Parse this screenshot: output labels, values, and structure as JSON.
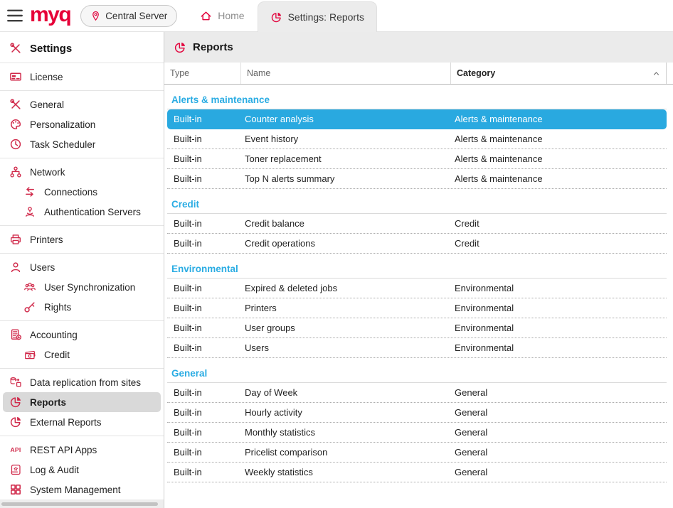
{
  "colors": {
    "brand_red": "#e60038",
    "icon_red": "#d0294a",
    "selected_row_blue": "#29a9e0",
    "category_header_blue": "#2aace3",
    "active_tab_bg": "#ececec",
    "sidebar_selected_bg": "#d9d9d9"
  },
  "topbar": {
    "menu_icon": "hamburger-icon",
    "logo_text": "myq",
    "server_button": {
      "icon": "location-pin-icon",
      "label": "Central Server"
    },
    "home_tab": {
      "icon": "home-icon",
      "label": "Home"
    },
    "active_tab": {
      "icon": "pie-chart-icon",
      "label": "Settings: Reports"
    }
  },
  "sidebar": {
    "groups": [
      {
        "items": [
          {
            "icon": "tools-icon",
            "label": "Settings",
            "style": "header"
          }
        ]
      },
      {
        "items": [
          {
            "icon": "license-icon",
            "label": "License"
          }
        ]
      },
      {
        "items": [
          {
            "icon": "tools-icon",
            "label": "General"
          },
          {
            "icon": "palette-icon",
            "label": "Personalization"
          },
          {
            "icon": "clock-icon",
            "label": "Task Scheduler"
          }
        ]
      },
      {
        "items": [
          {
            "icon": "network-icon",
            "label": "Network"
          },
          {
            "icon": "sync-arrows-icon",
            "label": "Connections",
            "indent": true
          },
          {
            "icon": "auth-server-icon",
            "label": "Authentication Servers",
            "indent": true
          }
        ]
      },
      {
        "items": [
          {
            "icon": "printer-icon",
            "label": "Printers"
          }
        ]
      },
      {
        "items": [
          {
            "icon": "user-icon",
            "label": "Users"
          },
          {
            "icon": "user-group-icon",
            "label": "User Synchronization",
            "indent": true
          },
          {
            "icon": "key-icon",
            "label": "Rights",
            "indent": true
          }
        ]
      },
      {
        "items": [
          {
            "icon": "calculator-icon",
            "label": "Accounting"
          },
          {
            "icon": "banknote-icon",
            "label": "Credit",
            "indent": true
          }
        ]
      },
      {
        "items": [
          {
            "icon": "database-sync-icon",
            "label": "Data replication from sites"
          },
          {
            "icon": "pie-chart-icon",
            "label": "Reports",
            "selected": true
          },
          {
            "icon": "pie-chart-icon",
            "label": "External Reports"
          }
        ]
      },
      {
        "items": [
          {
            "icon": "api-icon",
            "label": "REST API Apps"
          },
          {
            "icon": "scroll-icon",
            "label": "Log & Audit"
          },
          {
            "icon": "grid-icon",
            "label": "System Management"
          }
        ]
      }
    ]
  },
  "main": {
    "header": {
      "icon": "pie-chart-icon",
      "title": "Reports"
    },
    "table": {
      "columns": [
        {
          "label": "Type"
        },
        {
          "label": "Name"
        },
        {
          "label": "Category",
          "sorted": true,
          "sort_icon": "caret-up-icon"
        }
      ],
      "groups": [
        {
          "label": "Alerts & maintenance",
          "rows": [
            {
              "type": "Built-in",
              "name": "Counter analysis",
              "category": "Alerts & maintenance",
              "selected": true
            },
            {
              "type": "Built-in",
              "name": "Event history",
              "category": "Alerts & maintenance"
            },
            {
              "type": "Built-in",
              "name": "Toner replacement",
              "category": "Alerts & maintenance"
            },
            {
              "type": "Built-in",
              "name": "Top N alerts summary",
              "category": "Alerts & maintenance"
            }
          ]
        },
        {
          "label": "Credit",
          "rows": [
            {
              "type": "Built-in",
              "name": "Credit balance",
              "category": "Credit"
            },
            {
              "type": "Built-in",
              "name": "Credit operations",
              "category": "Credit"
            }
          ]
        },
        {
          "label": "Environmental",
          "rows": [
            {
              "type": "Built-in",
              "name": "Expired & deleted jobs",
              "category": "Environmental"
            },
            {
              "type": "Built-in",
              "name": "Printers",
              "category": "Environmental"
            },
            {
              "type": "Built-in",
              "name": "User groups",
              "category": "Environmental"
            },
            {
              "type": "Built-in",
              "name": "Users",
              "category": "Environmental"
            }
          ]
        },
        {
          "label": "General",
          "rows": [
            {
              "type": "Built-in",
              "name": "Day of Week",
              "category": "General"
            },
            {
              "type": "Built-in",
              "name": "Hourly activity",
              "category": "General"
            },
            {
              "type": "Built-in",
              "name": "Monthly statistics",
              "category": "General"
            },
            {
              "type": "Built-in",
              "name": "Pricelist comparison",
              "category": "General"
            },
            {
              "type": "Built-in",
              "name": "Weekly statistics",
              "category": "General"
            }
          ]
        }
      ]
    }
  }
}
